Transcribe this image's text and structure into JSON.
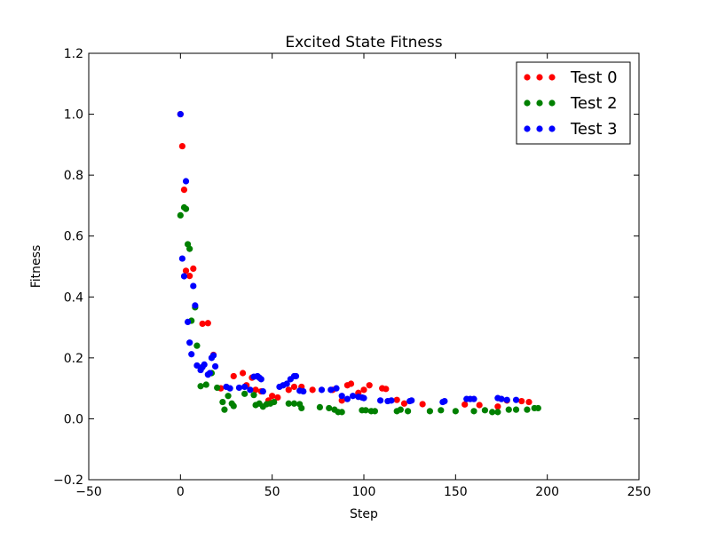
{
  "chart_data": {
    "type": "scatter",
    "title": "Excited State Fitness",
    "xlabel": "Step",
    "ylabel": "Fitness",
    "xlim": [
      -50,
      250
    ],
    "ylim": [
      -0.2,
      1.2
    ],
    "xticks": [
      -50,
      0,
      50,
      100,
      150,
      200,
      250
    ],
    "yticks": [
      -0.2,
      0.0,
      0.2,
      0.4,
      0.6,
      0.8,
      1.0,
      1.2
    ],
    "xtick_labels": [
      "−50",
      "0",
      "50",
      "100",
      "150",
      "200",
      "250"
    ],
    "ytick_labels": [
      "−0.2",
      "0.0",
      "0.2",
      "0.4",
      "0.6",
      "0.8",
      "1.0",
      "1.2"
    ],
    "grid": false,
    "legend_position": "top-right",
    "series": [
      {
        "name": "Test 0",
        "color": "#ff0000",
        "points": [
          [
            0,
            1.0
          ],
          [
            1,
            0.895
          ],
          [
            2,
            0.752
          ],
          [
            3,
            0.486
          ],
          [
            5,
            0.469
          ],
          [
            7,
            0.493
          ],
          [
            12,
            0.312
          ],
          [
            15,
            0.314
          ],
          [
            18,
            0.21
          ],
          [
            22,
            0.1
          ],
          [
            29,
            0.14
          ],
          [
            34,
            0.15
          ],
          [
            36,
            0.11
          ],
          [
            39,
            0.135
          ],
          [
            41,
            0.095
          ],
          [
            44,
            0.09
          ],
          [
            48,
            0.06
          ],
          [
            50,
            0.075
          ],
          [
            53,
            0.07
          ],
          [
            59,
            0.095
          ],
          [
            62,
            0.105
          ],
          [
            66,
            0.105
          ],
          [
            72,
            0.095
          ],
          [
            83,
            0.095
          ],
          [
            88,
            0.06
          ],
          [
            91,
            0.11
          ],
          [
            93,
            0.115
          ],
          [
            97,
            0.085
          ],
          [
            100,
            0.095
          ],
          [
            103,
            0.11
          ],
          [
            110,
            0.1
          ],
          [
            112,
            0.098
          ],
          [
            118,
            0.062
          ],
          [
            122,
            0.05
          ],
          [
            132,
            0.048
          ],
          [
            155,
            0.047
          ],
          [
            163,
            0.045
          ],
          [
            173,
            0.04
          ],
          [
            178,
            0.06
          ],
          [
            186,
            0.058
          ],
          [
            190,
            0.055
          ]
        ]
      },
      {
        "name": "Test 2",
        "color": "#008000",
        "points": [
          [
            0,
            0.668
          ],
          [
            2,
            0.694
          ],
          [
            3,
            0.689
          ],
          [
            4,
            0.573
          ],
          [
            5,
            0.558
          ],
          [
            6,
            0.322
          ],
          [
            8,
            0.366
          ],
          [
            9,
            0.24
          ],
          [
            11,
            0.107
          ],
          [
            14,
            0.112
          ],
          [
            17,
            0.15
          ],
          [
            20,
            0.102
          ],
          [
            23,
            0.055
          ],
          [
            24,
            0.03
          ],
          [
            26,
            0.075
          ],
          [
            28,
            0.05
          ],
          [
            29,
            0.042
          ],
          [
            35,
            0.082
          ],
          [
            40,
            0.078
          ],
          [
            41,
            0.045
          ],
          [
            43,
            0.05
          ],
          [
            45,
            0.04
          ],
          [
            47,
            0.048
          ],
          [
            49,
            0.05
          ],
          [
            51,
            0.055
          ],
          [
            59,
            0.05
          ],
          [
            62,
            0.05
          ],
          [
            65,
            0.048
          ],
          [
            66,
            0.035
          ],
          [
            76,
            0.038
          ],
          [
            81,
            0.035
          ],
          [
            84,
            0.03
          ],
          [
            86,
            0.022
          ],
          [
            88,
            0.022
          ],
          [
            99,
            0.028
          ],
          [
            101,
            0.028
          ],
          [
            104,
            0.025
          ],
          [
            106,
            0.025
          ],
          [
            118,
            0.025
          ],
          [
            120,
            0.03
          ],
          [
            124,
            0.025
          ],
          [
            136,
            0.025
          ],
          [
            142,
            0.028
          ],
          [
            150,
            0.025
          ],
          [
            160,
            0.025
          ],
          [
            166,
            0.028
          ],
          [
            170,
            0.022
          ],
          [
            173,
            0.022
          ],
          [
            179,
            0.03
          ],
          [
            183,
            0.03
          ],
          [
            189,
            0.03
          ],
          [
            193,
            0.035
          ],
          [
            195,
            0.035
          ]
        ]
      },
      {
        "name": "Test 3",
        "color": "#0000ff",
        "points": [
          [
            0,
            1.0
          ],
          [
            1,
            0.526
          ],
          [
            2,
            0.468
          ],
          [
            3,
            0.78
          ],
          [
            4,
            0.318
          ],
          [
            5,
            0.25
          ],
          [
            6,
            0.212
          ],
          [
            7,
            0.436
          ],
          [
            8,
            0.372
          ],
          [
            9,
            0.175
          ],
          [
            11,
            0.16
          ],
          [
            12,
            0.17
          ],
          [
            13,
            0.178
          ],
          [
            15,
            0.145
          ],
          [
            16,
            0.15
          ],
          [
            17,
            0.2
          ],
          [
            18,
            0.208
          ],
          [
            19,
            0.172
          ],
          [
            25,
            0.105
          ],
          [
            27,
            0.1
          ],
          [
            32,
            0.102
          ],
          [
            35,
            0.105
          ],
          [
            38,
            0.095
          ],
          [
            40,
            0.138
          ],
          [
            42,
            0.14
          ],
          [
            43,
            0.135
          ],
          [
            44,
            0.13
          ],
          [
            45,
            0.09
          ],
          [
            54,
            0.105
          ],
          [
            56,
            0.11
          ],
          [
            58,
            0.115
          ],
          [
            60,
            0.13
          ],
          [
            62,
            0.14
          ],
          [
            63,
            0.14
          ],
          [
            65,
            0.092
          ],
          [
            67,
            0.09
          ],
          [
            77,
            0.095
          ],
          [
            82,
            0.095
          ],
          [
            85,
            0.1
          ],
          [
            88,
            0.075
          ],
          [
            91,
            0.065
          ],
          [
            94,
            0.075
          ],
          [
            97,
            0.072
          ],
          [
            99,
            0.07
          ],
          [
            100,
            0.068
          ],
          [
            109,
            0.06
          ],
          [
            113,
            0.058
          ],
          [
            115,
            0.06
          ],
          [
            125,
            0.058
          ],
          [
            126,
            0.06
          ],
          [
            143,
            0.055
          ],
          [
            144,
            0.058
          ],
          [
            156,
            0.065
          ],
          [
            158,
            0.065
          ],
          [
            160,
            0.065
          ],
          [
            173,
            0.068
          ],
          [
            175,
            0.065
          ],
          [
            178,
            0.062
          ],
          [
            183,
            0.062
          ]
        ]
      }
    ]
  }
}
